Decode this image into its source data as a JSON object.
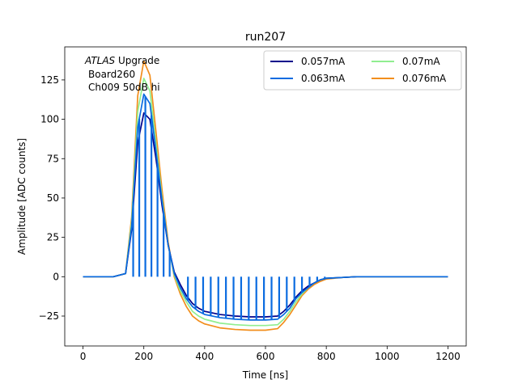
{
  "chart_data": {
    "type": "line",
    "title": "run207",
    "xlabel": "Time [ns]",
    "ylabel": "Amplitude [ADC counts]",
    "xlim": [
      -60,
      1260
    ],
    "ylim": [
      -44,
      146
    ],
    "xticks": [
      0,
      200,
      400,
      600,
      800,
      1000,
      1200
    ],
    "yticks": [
      -25,
      0,
      25,
      50,
      75,
      100,
      125
    ],
    "grid": false,
    "legend_position": "top-right",
    "annotation": {
      "line1_italic": "ATLAS",
      "line1_rest": " Upgrade",
      "line2": "Board260",
      "line3": "Ch009 50dB hi"
    },
    "series": [
      {
        "name": "0.057mA",
        "color": "#00008b",
        "x": [
          0,
          100,
          140,
          160,
          180,
          200,
          220,
          240,
          260,
          280,
          300,
          320,
          340,
          360,
          380,
          400,
          450,
          500,
          550,
          600,
          640,
          660,
          680,
          700,
          720,
          740,
          760,
          780,
          800,
          850,
          900,
          1000,
          1100,
          1200
        ],
        "y": [
          0,
          0,
          2,
          30,
          85,
          104,
          100,
          75,
          45,
          20,
          3,
          -5,
          -12,
          -17,
          -20,
          -22,
          -24,
          -25,
          -25.5,
          -25.5,
          -25,
          -22,
          -18,
          -13,
          -9,
          -6,
          -4,
          -2,
          -1,
          -0.5,
          0,
          0,
          0,
          0
        ]
      },
      {
        "name": "0.063mA",
        "color": "#0a6be0",
        "x": [
          0,
          100,
          140,
          160,
          180,
          200,
          220,
          240,
          260,
          280,
          300,
          320,
          340,
          360,
          380,
          400,
          450,
          500,
          550,
          600,
          640,
          660,
          680,
          700,
          720,
          740,
          760,
          780,
          800,
          850,
          900,
          1000,
          1100,
          1200
        ],
        "y": [
          0,
          0,
          2,
          32,
          95,
          116,
          110,
          80,
          48,
          20,
          2,
          -7,
          -14,
          -19,
          -22,
          -24,
          -26,
          -27,
          -27.5,
          -27.5,
          -27,
          -24,
          -20,
          -14,
          -10,
          -7,
          -4,
          -2,
          -1,
          -0.5,
          0,
          0,
          0,
          0
        ],
        "pulses": [
          165,
          185,
          205,
          225,
          245,
          265,
          285,
          345,
          370,
          395,
          420,
          445,
          470,
          495,
          520,
          545,
          570,
          595,
          620,
          645,
          670,
          695,
          720,
          745,
          770,
          795
        ]
      },
      {
        "name": "0.07mA",
        "color": "#90ee90",
        "x": [
          0,
          100,
          140,
          160,
          180,
          200,
          220,
          240,
          260,
          280,
          300,
          320,
          340,
          360,
          380,
          400,
          450,
          500,
          550,
          600,
          640,
          660,
          680,
          700,
          720,
          740,
          760,
          780,
          800,
          850,
          900,
          1000,
          1100,
          1200
        ],
        "y": [
          0,
          0,
          2,
          35,
          105,
          126,
          118,
          85,
          50,
          20,
          1,
          -9,
          -16,
          -22,
          -25,
          -27,
          -29.5,
          -30.5,
          -31,
          -31,
          -30.5,
          -27,
          -22,
          -16,
          -11,
          -7,
          -4,
          -2,
          -1,
          -0.5,
          0,
          0,
          0,
          0
        ]
      },
      {
        "name": "0.076mA",
        "color": "#f28e1c",
        "x": [
          0,
          100,
          140,
          160,
          180,
          200,
          220,
          240,
          260,
          280,
          300,
          320,
          340,
          360,
          380,
          400,
          450,
          500,
          550,
          600,
          640,
          660,
          680,
          700,
          720,
          740,
          760,
          780,
          800,
          850,
          900,
          1000,
          1100,
          1200
        ],
        "y": [
          0,
          0,
          2,
          38,
          115,
          137,
          128,
          92,
          55,
          22,
          0,
          -11,
          -19,
          -25,
          -28,
          -30,
          -32.5,
          -33.5,
          -34,
          -34,
          -33,
          -29,
          -24,
          -18,
          -12,
          -8,
          -5,
          -3,
          -1.5,
          -0.5,
          0,
          0,
          0,
          0
        ]
      }
    ]
  }
}
